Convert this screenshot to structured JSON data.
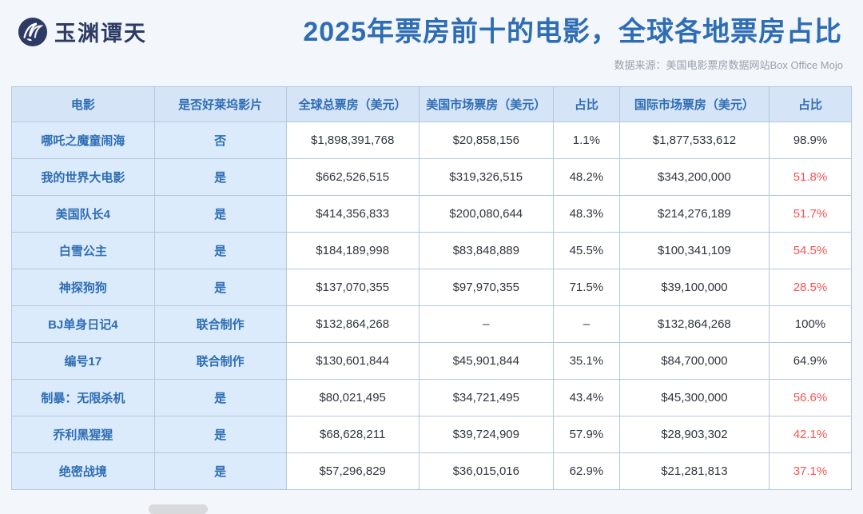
{
  "header": {
    "logo_text": "玉渊谭天",
    "title": "2025年票房前十的电影，全球各地票房占比",
    "source": "数据来源：美国电影票房数据网站Box Office Mojo"
  },
  "colors": {
    "title_blue": "#2e6db4",
    "header_cell_bg": "#d5e4f6",
    "label_cell_bg": "#dcebfb",
    "value_text": "#30363f",
    "red_percent": "#f75353",
    "logo_navy": "#2d3a63",
    "page_bg": "#f3f6fb"
  },
  "chart_data": {
    "type": "table",
    "title": "2025年票房前十的电影，全球各地票房占比",
    "source": "数据来源：美国电影票房数据网站Box Office Mojo",
    "columns": [
      "电影",
      "是否好莱坞影片",
      "全球总票房（美元）",
      "美国市场票房（美元）",
      "占比",
      "国际市场票房（美元）",
      "占比"
    ],
    "rows": [
      {
        "cells": [
          "哪吒之魔童闹海",
          "否",
          "$1,898,391,768",
          "$20,858,156",
          "1.1%",
          "$1,877,533,612",
          "98.9%"
        ],
        "intl_share_red": false
      },
      {
        "cells": [
          "我的世界大电影",
          "是",
          "$662,526,515",
          "$319,326,515",
          "48.2%",
          "$343,200,000",
          "51.8%"
        ],
        "intl_share_red": true
      },
      {
        "cells": [
          "美国队长4",
          "是",
          "$414,356,833",
          "$200,080,644",
          "48.3%",
          "$214,276,189",
          "51.7%"
        ],
        "intl_share_red": true
      },
      {
        "cells": [
          "白雪公主",
          "是",
          "$184,189,998",
          "$83,848,889",
          "45.5%",
          "$100,341,109",
          "54.5%"
        ],
        "intl_share_red": true
      },
      {
        "cells": [
          "神探狗狗",
          "是",
          "$137,070,355",
          "$97,970,355",
          "71.5%",
          "$39,100,000",
          "28.5%"
        ],
        "intl_share_red": true
      },
      {
        "cells": [
          "BJ单身日记4",
          "联合制作",
          "$132,864,268",
          "–",
          "–",
          "$132,864,268",
          "100%"
        ],
        "intl_share_red": false
      },
      {
        "cells": [
          "编号17",
          "联合制作",
          "$130,601,844",
          "$45,901,844",
          "35.1%",
          "$84,700,000",
          "64.9%"
        ],
        "intl_share_red": false
      },
      {
        "cells": [
          "制暴：无限杀机",
          "是",
          "$80,021,495",
          "$34,721,495",
          "43.4%",
          "$45,300,000",
          "56.6%"
        ],
        "intl_share_red": true
      },
      {
        "cells": [
          "乔利黑猩猩",
          "是",
          "$68,628,211",
          "$39,724,909",
          "57.9%",
          "$28,903,302",
          "42.1%"
        ],
        "intl_share_red": true
      },
      {
        "cells": [
          "绝密战境",
          "是",
          "$57,296,829",
          "$36,015,016",
          "62.9%",
          "$21,281,813",
          "37.1%"
        ],
        "intl_share_red": true
      }
    ],
    "numeric_rows": [
      {
        "movie": "哪吒之魔童闹海",
        "hollywood": "否",
        "global_usd": 1898391768,
        "us_usd": 20858156,
        "us_share_pct": 1.1,
        "intl_usd": 1877533612,
        "intl_share_pct": 98.9
      },
      {
        "movie": "我的世界大电影",
        "hollywood": "是",
        "global_usd": 662526515,
        "us_usd": 319326515,
        "us_share_pct": 48.2,
        "intl_usd": 343200000,
        "intl_share_pct": 51.8
      },
      {
        "movie": "美国队长4",
        "hollywood": "是",
        "global_usd": 414356833,
        "us_usd": 200080644,
        "us_share_pct": 48.3,
        "intl_usd": 214276189,
        "intl_share_pct": 51.7
      },
      {
        "movie": "白雪公主",
        "hollywood": "是",
        "global_usd": 184189998,
        "us_usd": 83848889,
        "us_share_pct": 45.5,
        "intl_usd": 100341109,
        "intl_share_pct": 54.5
      },
      {
        "movie": "神探狗狗",
        "hollywood": "是",
        "global_usd": 137070355,
        "us_usd": 97970355,
        "us_share_pct": 71.5,
        "intl_usd": 39100000,
        "intl_share_pct": 28.5
      },
      {
        "movie": "BJ单身日记4",
        "hollywood": "联合制作",
        "global_usd": 132864268,
        "us_usd": null,
        "us_share_pct": null,
        "intl_usd": 132864268,
        "intl_share_pct": 100
      },
      {
        "movie": "编号17",
        "hollywood": "联合制作",
        "global_usd": 130601844,
        "us_usd": 45901844,
        "us_share_pct": 35.1,
        "intl_usd": 84700000,
        "intl_share_pct": 64.9
      },
      {
        "movie": "制暴：无限杀机",
        "hollywood": "是",
        "global_usd": 80021495,
        "us_usd": 34721495,
        "us_share_pct": 43.4,
        "intl_usd": 45300000,
        "intl_share_pct": 56.6
      },
      {
        "movie": "乔利黑猩猩",
        "hollywood": "是",
        "global_usd": 68628211,
        "us_usd": 39724909,
        "us_share_pct": 57.9,
        "intl_usd": 28903302,
        "intl_share_pct": 42.1
      },
      {
        "movie": "绝密战境",
        "hollywood": "是",
        "global_usd": 57296829,
        "us_usd": 36015016,
        "us_share_pct": 62.9,
        "intl_usd": 21281813,
        "intl_share_pct": 37.1
      }
    ]
  }
}
